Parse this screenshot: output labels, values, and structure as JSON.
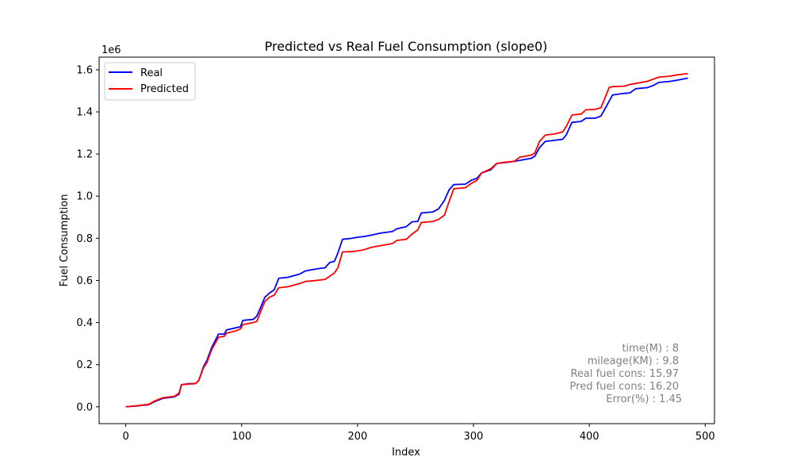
{
  "chart_data": {
    "type": "line",
    "title": "Predicted vs Real Fuel Consumption (slope0)",
    "xlabel": "Index",
    "ylabel": "Fuel Consumption",
    "y_offset_label": "1e6",
    "xlim": [
      -23,
      508
    ],
    "ylim": [
      -0.08,
      1.66
    ],
    "x_ticks": [
      0,
      100,
      200,
      300,
      400,
      500
    ],
    "x_tick_labels": [
      "0",
      "100",
      "200",
      "300",
      "400",
      "500"
    ],
    "y_ticks": [
      0.0,
      0.2,
      0.4,
      0.6,
      0.8,
      1.0,
      1.2,
      1.4,
      1.6
    ],
    "y_tick_labels": [
      "0.0",
      "0.2",
      "0.4",
      "0.6",
      "0.8",
      "1.0",
      "1.2",
      "1.4",
      "1.6"
    ],
    "grid": false,
    "legend_position": "top-left",
    "series": [
      {
        "name": "Real",
        "color": "#0000ff",
        "points": [
          [
            0,
            0.0
          ],
          [
            10,
            0.004
          ],
          [
            20,
            0.01
          ],
          [
            25,
            0.025
          ],
          [
            32,
            0.04
          ],
          [
            42,
            0.047
          ],
          [
            46,
            0.06
          ],
          [
            48,
            0.105
          ],
          [
            55,
            0.11
          ],
          [
            60,
            0.11
          ],
          [
            63,
            0.125
          ],
          [
            67,
            0.19
          ],
          [
            70,
            0.22
          ],
          [
            74,
            0.28
          ],
          [
            80,
            0.345
          ],
          [
            85,
            0.345
          ],
          [
            87,
            0.365
          ],
          [
            95,
            0.375
          ],
          [
            99,
            0.38
          ],
          [
            101,
            0.41
          ],
          [
            110,
            0.415
          ],
          [
            113,
            0.43
          ],
          [
            117,
            0.48
          ],
          [
            120,
            0.52
          ],
          [
            124,
            0.54
          ],
          [
            128,
            0.555
          ],
          [
            132,
            0.61
          ],
          [
            140,
            0.615
          ],
          [
            150,
            0.63
          ],
          [
            155,
            0.645
          ],
          [
            165,
            0.655
          ],
          [
            172,
            0.66
          ],
          [
            176,
            0.685
          ],
          [
            180,
            0.69
          ],
          [
            183,
            0.73
          ],
          [
            187,
            0.795
          ],
          [
            195,
            0.8
          ],
          [
            200,
            0.805
          ],
          [
            205,
            0.808
          ],
          [
            212,
            0.815
          ],
          [
            220,
            0.825
          ],
          [
            230,
            0.832
          ],
          [
            234,
            0.845
          ],
          [
            242,
            0.855
          ],
          [
            247,
            0.878
          ],
          [
            252,
            0.88
          ],
          [
            255,
            0.92
          ],
          [
            265,
            0.925
          ],
          [
            270,
            0.94
          ],
          [
            275,
            0.98
          ],
          [
            279,
            1.03
          ],
          [
            283,
            1.055
          ],
          [
            293,
            1.057
          ],
          [
            298,
            1.075
          ],
          [
            303,
            1.085
          ],
          [
            307,
            1.11
          ],
          [
            315,
            1.125
          ],
          [
            320,
            1.155
          ],
          [
            328,
            1.16
          ],
          [
            335,
            1.165
          ],
          [
            340,
            1.17
          ],
          [
            350,
            1.18
          ],
          [
            353,
            1.19
          ],
          [
            357,
            1.23
          ],
          [
            362,
            1.26
          ],
          [
            370,
            1.265
          ],
          [
            377,
            1.27
          ],
          [
            380,
            1.29
          ],
          [
            385,
            1.35
          ],
          [
            393,
            1.355
          ],
          [
            397,
            1.37
          ],
          [
            405,
            1.37
          ],
          [
            410,
            1.38
          ],
          [
            413,
            1.41
          ],
          [
            417,
            1.45
          ],
          [
            420,
            1.48
          ],
          [
            430,
            1.488
          ],
          [
            435,
            1.49
          ],
          [
            440,
            1.51
          ],
          [
            450,
            1.515
          ],
          [
            455,
            1.525
          ],
          [
            460,
            1.54
          ],
          [
            470,
            1.545
          ],
          [
            475,
            1.55
          ],
          [
            485,
            1.56
          ]
        ]
      },
      {
        "name": "Predicted",
        "color": "#ff0000",
        "points": [
          [
            0,
            0.0
          ],
          [
            10,
            0.005
          ],
          [
            20,
            0.012
          ],
          [
            25,
            0.028
          ],
          [
            32,
            0.043
          ],
          [
            42,
            0.05
          ],
          [
            46,
            0.065
          ],
          [
            48,
            0.105
          ],
          [
            55,
            0.108
          ],
          [
            60,
            0.11
          ],
          [
            63,
            0.125
          ],
          [
            67,
            0.185
          ],
          [
            70,
            0.21
          ],
          [
            74,
            0.27
          ],
          [
            80,
            0.33
          ],
          [
            85,
            0.335
          ],
          [
            87,
            0.35
          ],
          [
            95,
            0.36
          ],
          [
            99,
            0.37
          ],
          [
            101,
            0.39
          ],
          [
            110,
            0.4
          ],
          [
            113,
            0.405
          ],
          [
            117,
            0.46
          ],
          [
            120,
            0.5
          ],
          [
            124,
            0.52
          ],
          [
            128,
            0.53
          ],
          [
            132,
            0.565
          ],
          [
            140,
            0.57
          ],
          [
            150,
            0.585
          ],
          [
            155,
            0.595
          ],
          [
            165,
            0.6
          ],
          [
            172,
            0.605
          ],
          [
            176,
            0.62
          ],
          [
            180,
            0.635
          ],
          [
            183,
            0.66
          ],
          [
            187,
            0.735
          ],
          [
            195,
            0.737
          ],
          [
            200,
            0.74
          ],
          [
            205,
            0.745
          ],
          [
            212,
            0.757
          ],
          [
            220,
            0.765
          ],
          [
            230,
            0.775
          ],
          [
            234,
            0.79
          ],
          [
            242,
            0.795
          ],
          [
            247,
            0.82
          ],
          [
            252,
            0.84
          ],
          [
            255,
            0.875
          ],
          [
            265,
            0.88
          ],
          [
            270,
            0.89
          ],
          [
            275,
            0.91
          ],
          [
            279,
            0.975
          ],
          [
            283,
            1.035
          ],
          [
            293,
            1.04
          ],
          [
            298,
            1.06
          ],
          [
            303,
            1.075
          ],
          [
            307,
            1.11
          ],
          [
            315,
            1.13
          ],
          [
            320,
            1.155
          ],
          [
            328,
            1.162
          ],
          [
            335,
            1.165
          ],
          [
            340,
            1.185
          ],
          [
            350,
            1.195
          ],
          [
            353,
            1.205
          ],
          [
            357,
            1.26
          ],
          [
            362,
            1.29
          ],
          [
            370,
            1.295
          ],
          [
            377,
            1.305
          ],
          [
            380,
            1.33
          ],
          [
            385,
            1.385
          ],
          [
            393,
            1.39
          ],
          [
            397,
            1.41
          ],
          [
            405,
            1.412
          ],
          [
            410,
            1.42
          ],
          [
            413,
            1.46
          ],
          [
            417,
            1.515
          ],
          [
            420,
            1.52
          ],
          [
            430,
            1.522
          ],
          [
            435,
            1.53
          ],
          [
            440,
            1.535
          ],
          [
            450,
            1.545
          ],
          [
            455,
            1.555
          ],
          [
            460,
            1.565
          ],
          [
            470,
            1.57
          ],
          [
            475,
            1.575
          ],
          [
            485,
            1.582
          ]
        ]
      }
    ],
    "annotations": [
      "time(M) : 8",
      "mileage(KM) : 9.8",
      "Real fuel cons: 15.97",
      "Pred fuel cons: 16.20",
      "Error(%) : 1.45"
    ]
  }
}
